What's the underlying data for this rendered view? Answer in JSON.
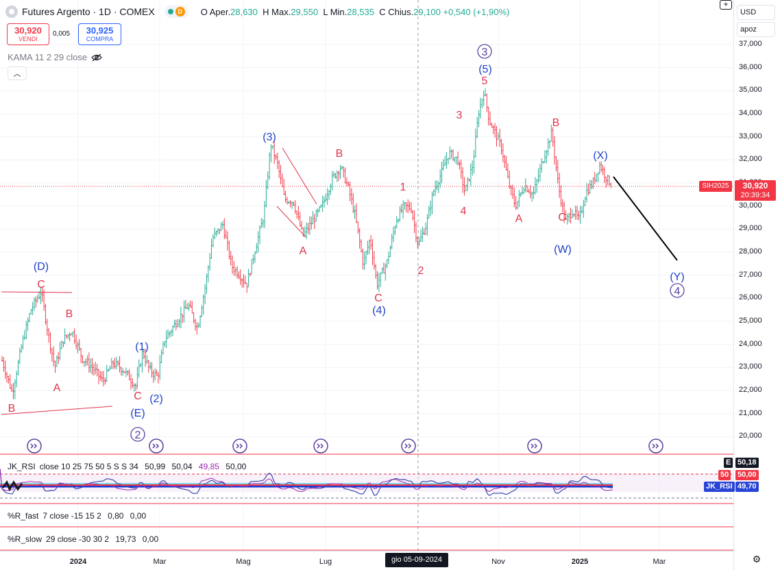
{
  "header": {
    "title": "Futures Argento · 1D · COMEX",
    "indicator_d": "D",
    "ohlc": [
      {
        "k": "O",
        "v": "28,630"
      },
      {
        "k": "H",
        "v": "29,550"
      },
      {
        "k": "L",
        "v": "28,535"
      },
      {
        "k": "C",
        "v": "29,100"
      }
    ],
    "ohlc_labels": {
      "O": "Aper.",
      "H": "Max.",
      "L": "Min.",
      "C": "Chius."
    },
    "change": "+0,540 (+1,90%)"
  },
  "trade": {
    "sell_price": "30,920",
    "sell_label": "VENDI",
    "spread": "0,005",
    "buy_price": "30,925",
    "buy_label": "COMPRA"
  },
  "kama_label": "KAMA 11 2 29 close",
  "goto_symbol": "+",
  "axis": {
    "currency": "USD",
    "session": "apoz",
    "price_ticks": [
      "37,000",
      "36,000",
      "35,000",
      "34,000",
      "33,000",
      "32,000",
      "31,000",
      "30,000",
      "29,000",
      "28,000",
      "27,000",
      "26,000",
      "25,000",
      "24,000",
      "23,000",
      "22,000",
      "21,000",
      "20,000"
    ],
    "symbol_tag": "SIH2025",
    "last_price": "30,920",
    "countdown": "20:39:34"
  },
  "date_axis": {
    "ticks": [
      "2024",
      "Mar",
      "Mag",
      "Lug",
      "Nov",
      "2025",
      "Mar"
    ],
    "crosshair_date": "gio 05-09-2024"
  },
  "rsi": {
    "label": "JK_RSI",
    "params": "close 10 25 75 50 5 S S 34",
    "values": [
      "50,99",
      "50,04",
      "49,85",
      "50,00"
    ],
    "tag_e_letter": "E",
    "tag_e": "50,18",
    "tag_50_letter": "50",
    "tag_50": "50,00",
    "tag_name": "JK_RSI",
    "tag_val": "49,70"
  },
  "r_fast": {
    "label": "%R_fast",
    "params": "7 close -15 15 2",
    "values": [
      "0,80",
      "0,00"
    ]
  },
  "r_slow": {
    "label": "%R_slow",
    "params": "29 close -30 30 2",
    "values": [
      "19,73",
      "0,00"
    ]
  },
  "wave_labels": {
    "D": "(D)",
    "C1": "C",
    "B1": "B",
    "A1": "A",
    "Bt": "B",
    "p1": "(1)",
    "C2": "C",
    "p2": "(2)",
    "E": "(E)",
    "c2": "2",
    "p3": "(3)",
    "A2": "A",
    "B2": "B",
    "C3": "C",
    "p4": "(4)",
    "n1": "1",
    "n2": "2",
    "n3": "3",
    "n4": "4",
    "n5": "5",
    "p5": "(5)",
    "c3": "3",
    "A3": "A",
    "B3": "B",
    "C4": "C",
    "W": "(W)",
    "X": "(X)",
    "Y": "(Y)",
    "c4": "4"
  },
  "colors": {
    "up": "#22ab94",
    "down": "#f23645",
    "wave_red": "#e0334a",
    "wave_blue": "#1e40c8",
    "wave_purple": "#5a3fa0",
    "rsi_blue": "#1b39d6"
  }
}
